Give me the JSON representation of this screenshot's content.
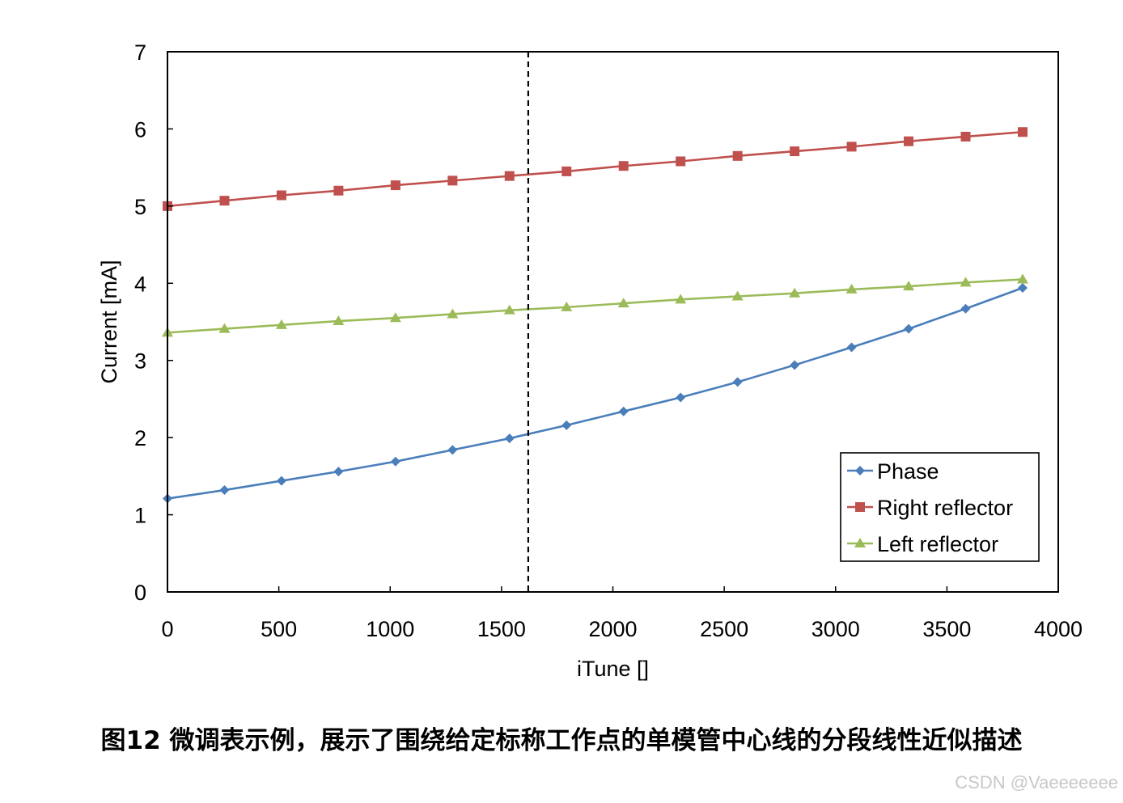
{
  "chart_data": {
    "type": "line",
    "xlabel": "iTune []",
    "ylabel": "Current [mA]",
    "xlim": [
      0,
      4000
    ],
    "ylim": [
      0,
      7
    ],
    "x_ticks": [
      "0",
      "500",
      "1000",
      "1500",
      "2000",
      "2500",
      "3000",
      "3500",
      "4000"
    ],
    "y_ticks": [
      "0",
      "1",
      "2",
      "3",
      "4",
      "5",
      "6",
      "7"
    ],
    "grid": false,
    "legend_position": "bottom-right",
    "reference_line": {
      "orientation": "vertical",
      "style": "dashed",
      "x": 1620
    },
    "x": [
      0,
      256,
      512,
      768,
      1024,
      1280,
      1536,
      1792,
      2048,
      2304,
      2560,
      2816,
      3072,
      3328,
      3584,
      3840
    ],
    "series": [
      {
        "name": "Phase",
        "color": "#4a7ebb",
        "marker": "diamond",
        "values": [
          1.21,
          1.32,
          1.44,
          1.56,
          1.69,
          1.84,
          1.99,
          2.16,
          2.34,
          2.52,
          2.72,
          2.94,
          3.17,
          3.41,
          3.67,
          3.94
        ]
      },
      {
        "name": "Right reflector",
        "color": "#c0504d",
        "marker": "square",
        "values": [
          5.0,
          5.07,
          5.14,
          5.2,
          5.27,
          5.33,
          5.39,
          5.45,
          5.52,
          5.58,
          5.65,
          5.71,
          5.77,
          5.84,
          5.9,
          5.96
        ]
      },
      {
        "name": "Left reflector",
        "color": "#9bbb59",
        "marker": "triangle",
        "values": [
          3.36,
          3.41,
          3.46,
          3.51,
          3.55,
          3.6,
          3.65,
          3.69,
          3.74,
          3.79,
          3.83,
          3.87,
          3.92,
          3.96,
          4.01,
          4.05
        ]
      }
    ]
  },
  "caption": "图12 微调表示例，展示了围绕给定标称工作点的单模管中心线的分段线性近似描述",
  "watermark": "CSDN @Vaeeeeeee"
}
